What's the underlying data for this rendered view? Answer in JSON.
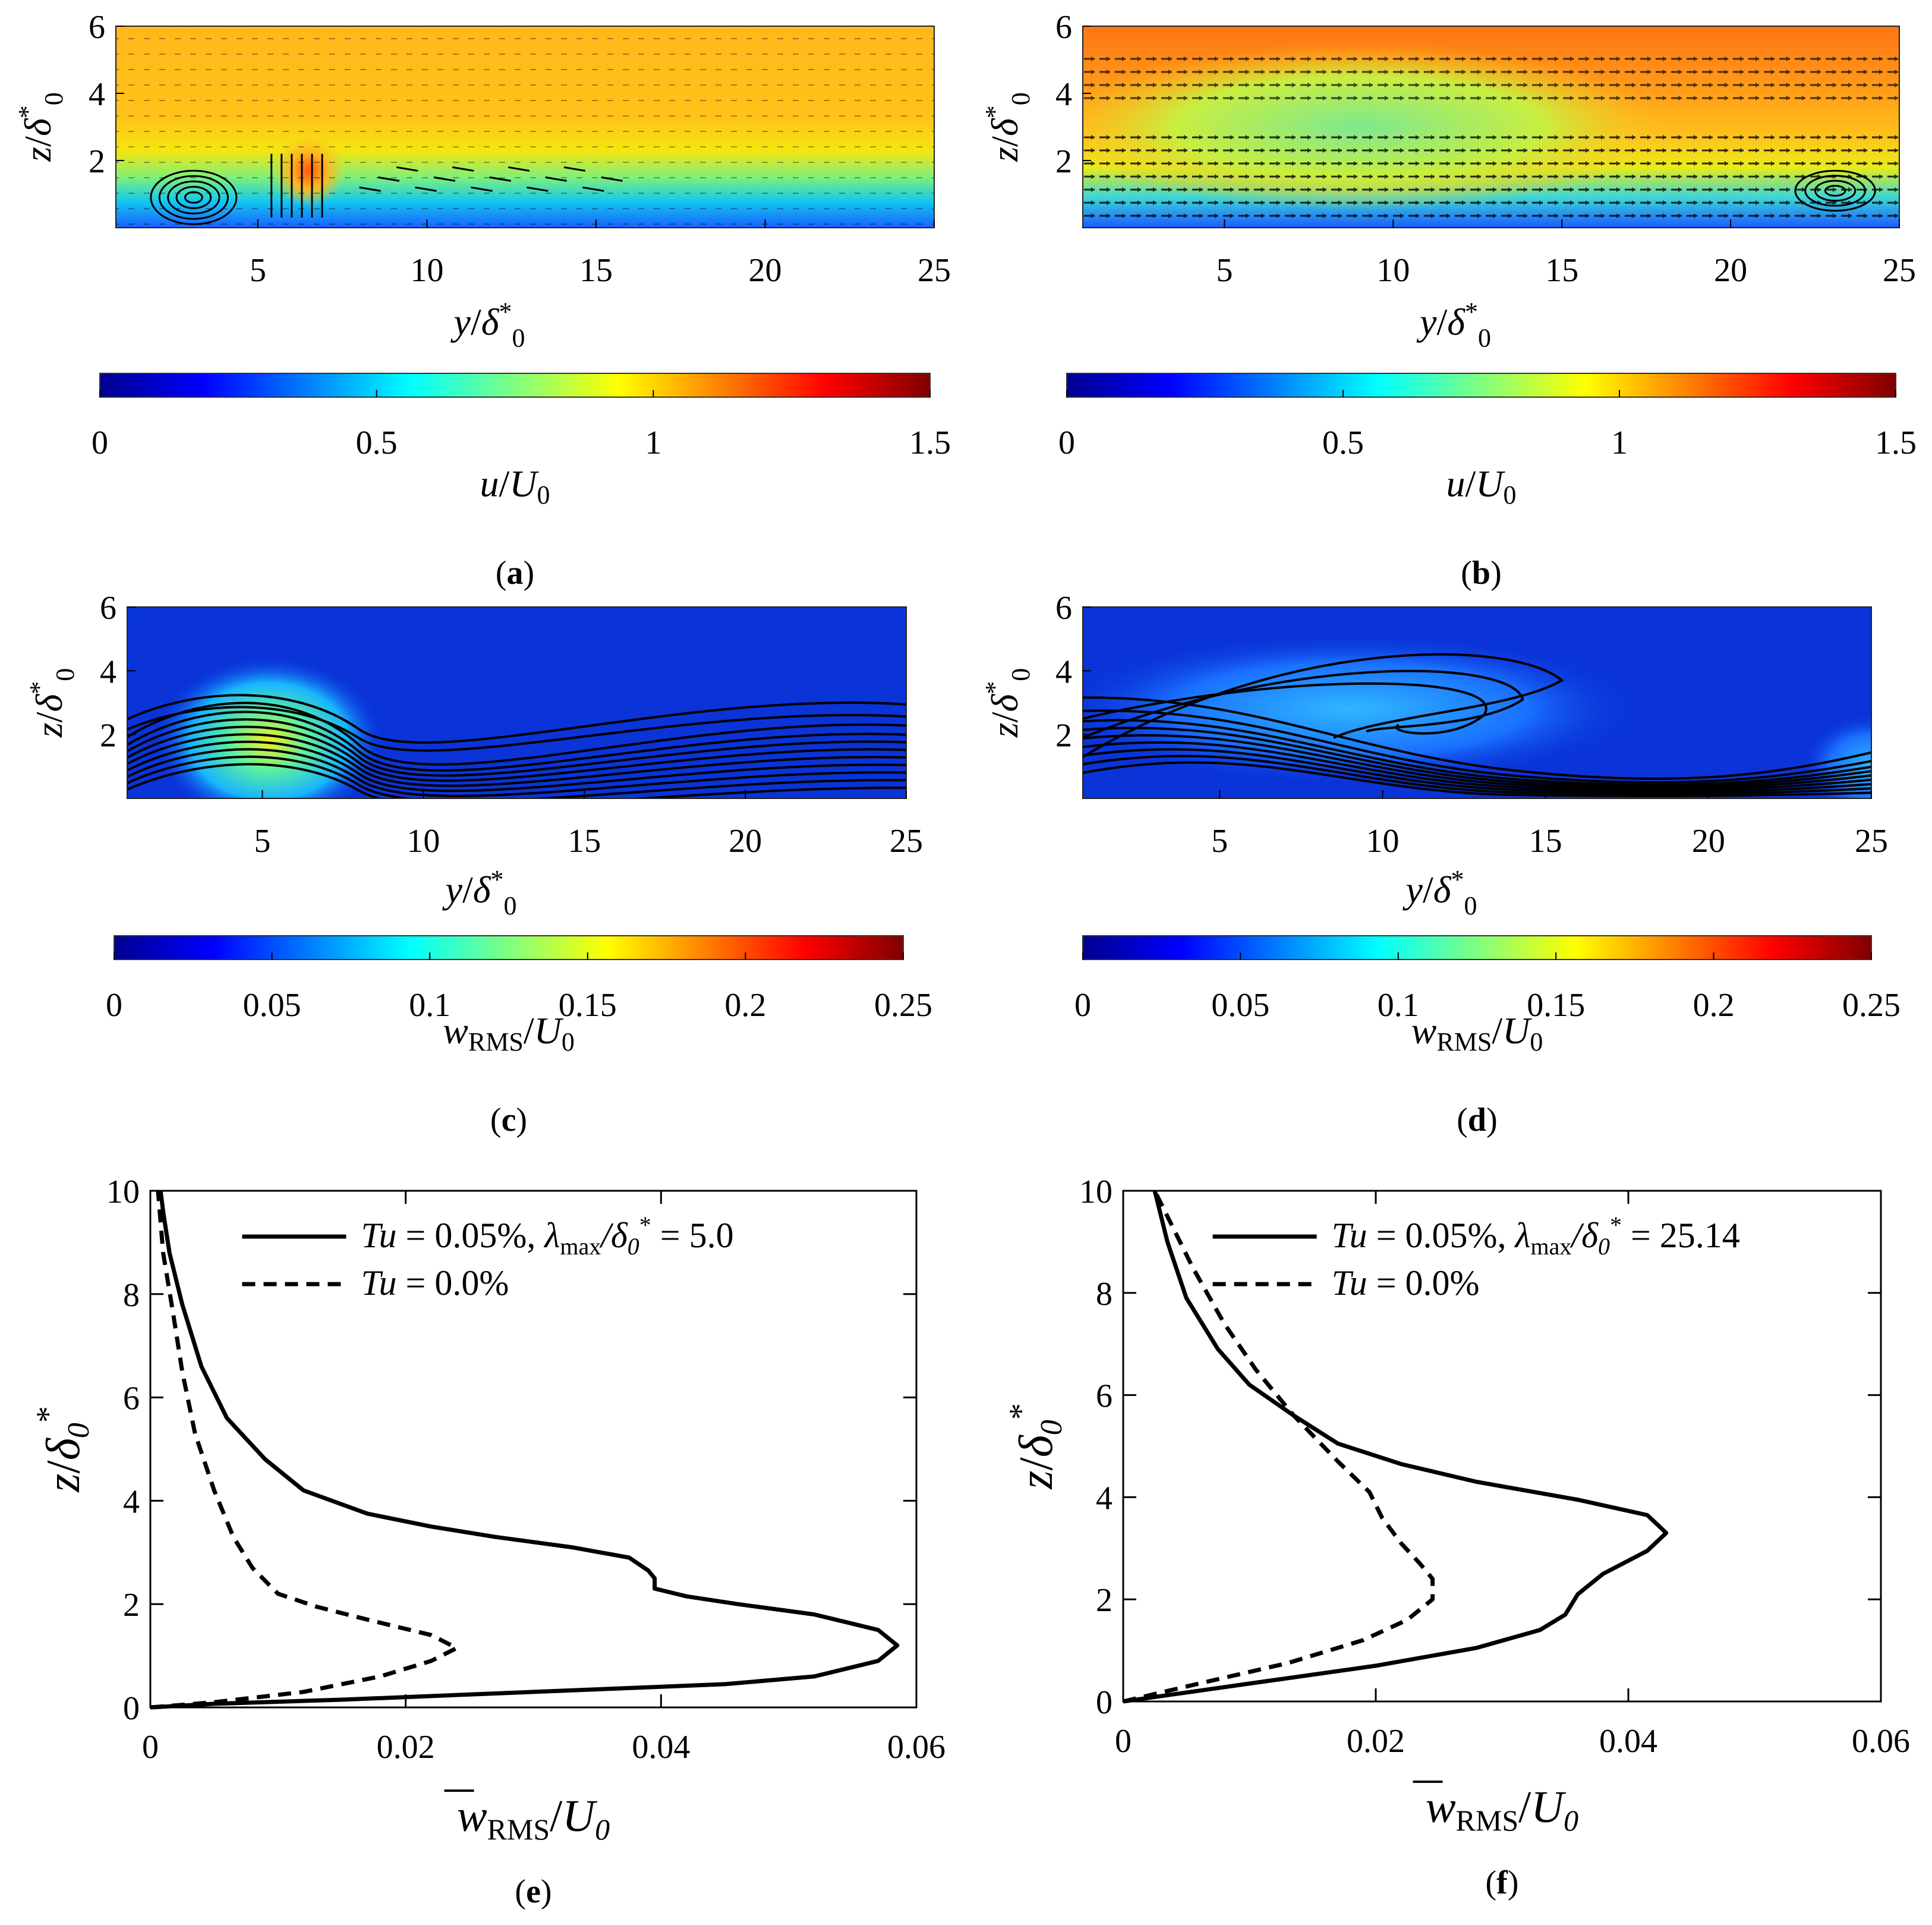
{
  "figure": {
    "panels": {
      "a": {
        "label": "(",
        "letter": "a",
        "close": ")"
      },
      "b": {
        "label": "(",
        "letter": "b",
        "close": ")"
      },
      "c": {
        "label": "(",
        "letter": "c",
        "close": ")"
      },
      "d": {
        "label": "(",
        "letter": "d",
        "close": ")"
      },
      "e": {
        "label": "(",
        "letter": "e",
        "close": ")"
      },
      "f": {
        "label": "(",
        "letter": "f",
        "close": ")"
      }
    },
    "contour_axes": {
      "xlabel_var": "y",
      "xlabel_sym": "δ",
      "xlabel_sup": "*",
      "xlabel_subs": "0",
      "ylabel_var": "z",
      "ylabel_sym": "δ",
      "ylabel_sup": "*",
      "ylabel_subs": "0",
      "xticks": [
        "5",
        "10",
        "15",
        "20",
        "25"
      ],
      "yticks": [
        "2",
        "4",
        "6"
      ]
    },
    "colorbars": {
      "u": {
        "label_var": "u",
        "label_den": "U",
        "label_den_sub": "0",
        "ticks": [
          "0",
          "0.5",
          "1",
          "1.5"
        ]
      },
      "w": {
        "label_var": "w",
        "label_sub": "RMS",
        "label_den": "U",
        "label_den_sub": "0",
        "ticks": [
          "0",
          "0.05",
          "0.1",
          "0.15",
          "0.2",
          "0.25"
        ]
      }
    },
    "colors": {
      "jet_low": "#00008f",
      "jet_high": "#800000"
    }
  },
  "chart_data": [
    {
      "type": "heatmap",
      "panel": "a",
      "field": "u/U0 with in-plane velocity vectors",
      "x_range": [
        0.8,
        25
      ],
      "y_range": [
        0,
        6
      ],
      "clim": [
        0,
        1.5
      ]
    },
    {
      "type": "heatmap",
      "panel": "b",
      "field": "u/U0 with in-plane velocity vectors",
      "x_range": [
        0.8,
        25
      ],
      "y_range": [
        0,
        6
      ],
      "clim": [
        0,
        1.5
      ]
    },
    {
      "type": "heatmap",
      "panel": "c",
      "field": "wRMS/U0 with u contours",
      "x_range": [
        0.8,
        25
      ],
      "y_range": [
        0,
        6
      ],
      "clim": [
        0,
        0.25
      ]
    },
    {
      "type": "heatmap",
      "panel": "d",
      "field": "wRMS/U0 with u contours",
      "x_range": [
        0.8,
        25
      ],
      "y_range": [
        0,
        6
      ],
      "clim": [
        0,
        0.25
      ]
    },
    {
      "type": "line",
      "panel": "e",
      "xlabel": "wRMS/U0",
      "ylabel": "z/δ0*",
      "xlim": [
        0,
        0.06
      ],
      "ylim": [
        0,
        10
      ],
      "xticks": [
        "0",
        "0.02",
        "0.04",
        "0.06"
      ],
      "yticks": [
        "0",
        "2",
        "4",
        "6",
        "8",
        "10"
      ],
      "legend_pos": "top-right",
      "series": [
        {
          "name_tu": "Tu",
          "name_rest": " = 0.05%, ",
          "name_lam": "λ",
          "name_lam_sub": "max",
          "name_div": "/δ",
          "name_div_sub": "0",
          "name_val": " = 5.0",
          "style": "solid",
          "points": [
            [
              0.0,
              0.0
            ],
            [
              0.005,
              0.07
            ],
            [
              0.015,
              0.15
            ],
            [
              0.03,
              0.3
            ],
            [
              0.045,
              0.45
            ],
            [
              0.052,
              0.6
            ],
            [
              0.057,
              0.9
            ],
            [
              0.0585,
              1.2
            ],
            [
              0.057,
              1.5
            ],
            [
              0.052,
              1.8
            ],
            [
              0.046,
              2.0
            ],
            [
              0.042,
              2.15
            ],
            [
              0.0395,
              2.3
            ],
            [
              0.0395,
              2.5
            ],
            [
              0.039,
              2.65
            ],
            [
              0.0375,
              2.9
            ],
            [
              0.033,
              3.1
            ],
            [
              0.027,
              3.3
            ],
            [
              0.022,
              3.5
            ],
            [
              0.017,
              3.75
            ],
            [
              0.012,
              4.2
            ],
            [
              0.009,
              4.8
            ],
            [
              0.006,
              5.6
            ],
            [
              0.004,
              6.6
            ],
            [
              0.0025,
              7.8
            ],
            [
              0.0015,
              8.8
            ],
            [
              0.001,
              9.6
            ],
            [
              0.0008,
              10.0
            ]
          ]
        },
        {
          "name_tu": "Tu",
          "name_rest": " = 0.0%",
          "style": "dashed",
          "points": [
            [
              0.0,
              0.0
            ],
            [
              0.005,
              0.1
            ],
            [
              0.012,
              0.3
            ],
            [
              0.018,
              0.6
            ],
            [
              0.022,
              0.9
            ],
            [
              0.024,
              1.15
            ],
            [
              0.022,
              1.4
            ],
            [
              0.017,
              1.7
            ],
            [
              0.013,
              1.95
            ],
            [
              0.01,
              2.2
            ],
            [
              0.008,
              2.7
            ],
            [
              0.0065,
              3.3
            ],
            [
              0.005,
              4.2
            ],
            [
              0.0035,
              5.3
            ],
            [
              0.0025,
              6.5
            ],
            [
              0.0018,
              7.6
            ],
            [
              0.001,
              8.8
            ],
            [
              0.0006,
              10.0
            ]
          ]
        }
      ]
    },
    {
      "type": "line",
      "panel": "f",
      "xlabel": "wRMS/U0",
      "ylabel": "z/δ0*",
      "xlim": [
        0,
        0.06
      ],
      "ylim": [
        0,
        10
      ],
      "xticks": [
        "0",
        "0.02",
        "0.04",
        "0.06"
      ],
      "yticks": [
        "0",
        "2",
        "4",
        "6",
        "8",
        "10"
      ],
      "legend_pos": "top-right",
      "series": [
        {
          "name_tu": "Tu",
          "name_rest": " = 0.05%, ",
          "name_lam": "λ",
          "name_lam_sub": "max",
          "name_div": "/δ",
          "name_div_sub": "0",
          "name_val": " = 25.14",
          "style": "solid",
          "points": [
            [
              0.0,
              0.0
            ],
            [
              0.01,
              0.35
            ],
            [
              0.02,
              0.7
            ],
            [
              0.028,
              1.05
            ],
            [
              0.033,
              1.4
            ],
            [
              0.035,
              1.7
            ],
            [
              0.036,
              2.1
            ],
            [
              0.038,
              2.5
            ],
            [
              0.0415,
              2.95
            ],
            [
              0.043,
              3.3
            ],
            [
              0.0415,
              3.65
            ],
            [
              0.036,
              3.95
            ],
            [
              0.028,
              4.3
            ],
            [
              0.022,
              4.65
            ],
            [
              0.017,
              5.05
            ],
            [
              0.0135,
              5.6
            ],
            [
              0.01,
              6.2
            ],
            [
              0.0075,
              6.9
            ],
            [
              0.005,
              7.9
            ],
            [
              0.0035,
              9.0
            ],
            [
              0.0025,
              10.0
            ]
          ]
        },
        {
          "name_tu": "Tu",
          "name_rest": " = 0.0%",
          "style": "dashed",
          "points": [
            [
              0.0,
              0.0
            ],
            [
              0.006,
              0.35
            ],
            [
              0.013,
              0.75
            ],
            [
              0.019,
              1.2
            ],
            [
              0.0225,
              1.6
            ],
            [
              0.0245,
              2.0
            ],
            [
              0.0245,
              2.4
            ],
            [
              0.0235,
              2.7
            ],
            [
              0.022,
              3.1
            ],
            [
              0.0205,
              3.6
            ],
            [
              0.0195,
              4.1
            ],
            [
              0.017,
              4.7
            ],
            [
              0.0135,
              5.6
            ],
            [
              0.0105,
              6.5
            ],
            [
              0.008,
              7.4
            ],
            [
              0.0055,
              8.5
            ],
            [
              0.0035,
              9.5
            ],
            [
              0.0025,
              10.0
            ]
          ]
        }
      ]
    }
  ]
}
